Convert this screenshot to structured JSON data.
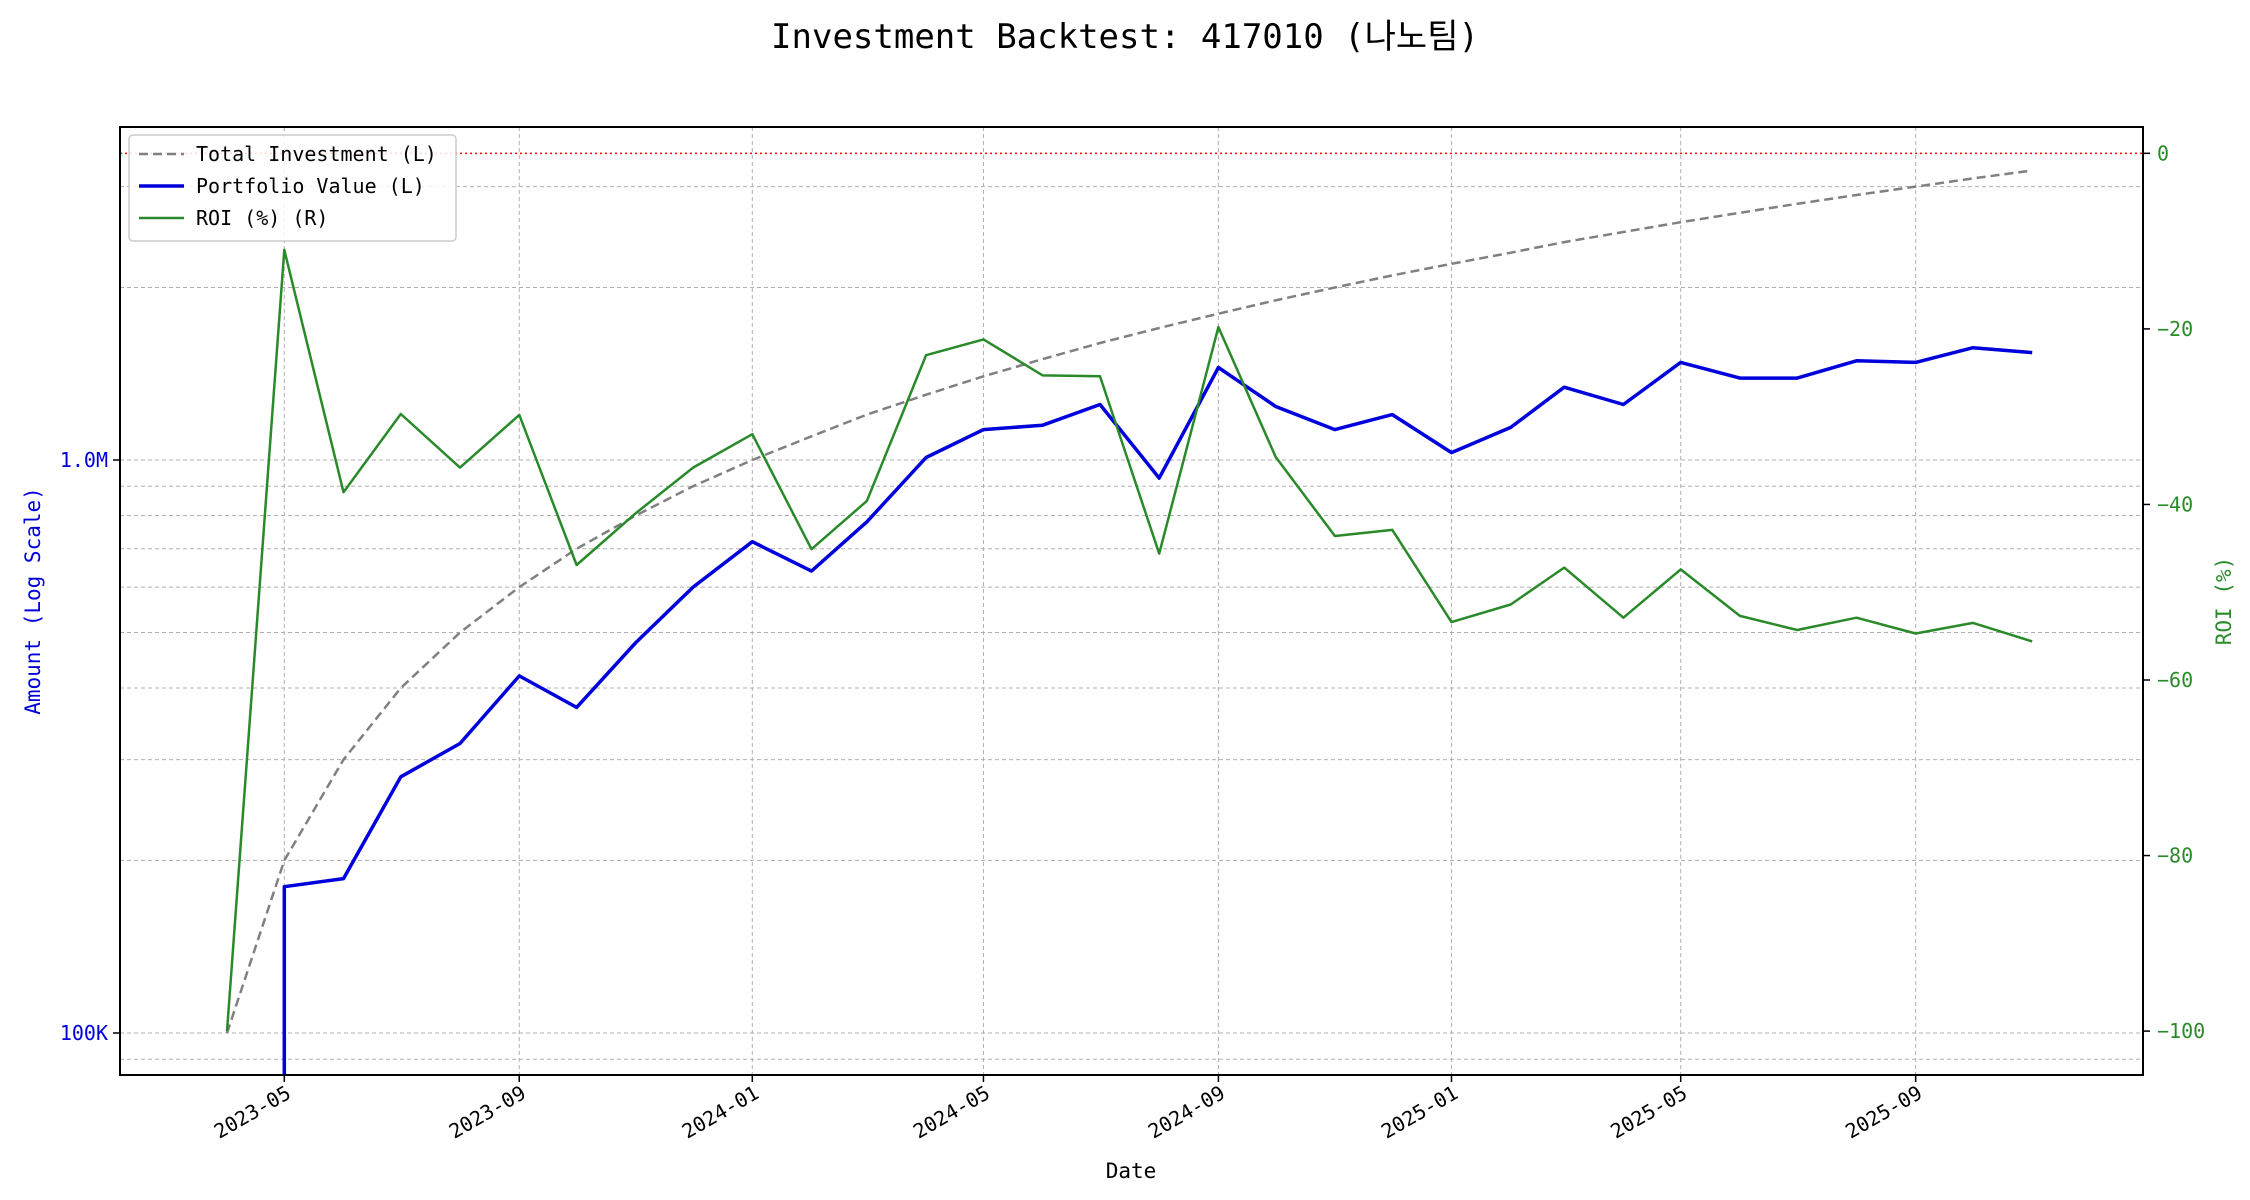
{
  "chart_data": {
    "type": "line",
    "title": "Investment Backtest: 417010 (나노팀)",
    "xlabel": "Date",
    "ylabel_left": "Amount (Log Scale)",
    "ylabel_right": "ROI (%)",
    "left_scale": "log",
    "left_ticks": [
      "100K",
      "1.0M"
    ],
    "right_ticks": [
      "0",
      "−20",
      "−40",
      "−60",
      "−80",
      "−100"
    ],
    "right_ylim": [
      -105,
      3
    ],
    "x_ticks": [
      "2023-05",
      "2023-09",
      "2024-01",
      "2024-05",
      "2024-09",
      "2025-01",
      "2025-05",
      "2025-09"
    ],
    "x_tick_dates": [
      "2023-05-01",
      "2023-09-01",
      "2024-01-01",
      "2024-05-01",
      "2024-09-01",
      "2025-01-01",
      "2025-05-01",
      "2025-09-01"
    ],
    "x_range": [
      "2023-02-04",
      "2025-12-29"
    ],
    "grid": true,
    "legend_position": "top-left",
    "zero_line": {
      "value": 0,
      "axis": "right",
      "color": "#ff0000"
    },
    "dates": [
      "2023-04-01",
      "2023-05-01",
      "2023-06-01",
      "2023-07-01",
      "2023-08-01",
      "2023-09-01",
      "2023-10-01",
      "2023-11-01",
      "2023-12-01",
      "2024-01-01",
      "2024-02-01",
      "2024-03-01",
      "2024-04-01",
      "2024-05-01",
      "2024-06-01",
      "2024-07-01",
      "2024-08-01",
      "2024-09-01",
      "2024-10-01",
      "2024-11-01",
      "2024-12-01",
      "2025-01-01",
      "2025-02-01",
      "2025-03-01",
      "2025-04-01",
      "2025-05-01",
      "2025-06-01",
      "2025-07-01",
      "2025-08-01",
      "2025-09-01",
      "2025-10-01",
      "2025-11-01"
    ],
    "series": [
      {
        "name": "Total Investment (L)",
        "axis": "left",
        "color": "#808080",
        "style": "dashed",
        "values": [
          100000,
          200000,
          300000,
          400000,
          500000,
          600000,
          700000,
          800000,
          900000,
          1000000,
          1100000,
          1200000,
          1300000,
          1400000,
          1500000,
          1600000,
          1700000,
          1800000,
          1900000,
          2000000,
          2100000,
          2200000,
          2300000,
          2400000,
          2500000,
          2600000,
          2700000,
          2800000,
          2900000,
          3000000,
          3100000,
          3200000
        ]
      },
      {
        "name": "Portfolio Value (L)",
        "axis": "left",
        "color": "#0000dd",
        "style": "solid",
        "values": [
          null,
          180000,
          186000,
          280000,
          320000,
          420000,
          370000,
          480000,
          600000,
          720000,
          640000,
          780000,
          1010000,
          1130000,
          1150000,
          1250000,
          930000,
          1450000,
          1240000,
          1130000,
          1200000,
          1030000,
          1140000,
          1340000,
          1250000,
          1480000,
          1390000,
          1390000,
          1490000,
          1480000,
          1570000,
          1540000
        ]
      },
      {
        "name": "ROI (%) (R)",
        "axis": "right",
        "color": "#2a8a2a",
        "style": "solid",
        "values": [
          -100,
          -11,
          -38.6,
          -29.7,
          -35.8,
          -29.8,
          -46.9,
          -41,
          -35.8,
          -32,
          -45.1,
          -39.6,
          -23,
          -21.2,
          -25.3,
          -25.4,
          -45.6,
          -19.8,
          -34.6,
          -43.6,
          -42.9,
          -53.4,
          -51.4,
          -47.2,
          -52.9,
          -47.4,
          -52.7,
          -54.3,
          -52.9,
          -54.7,
          -53.5,
          -55.6
        ]
      }
    ]
  }
}
